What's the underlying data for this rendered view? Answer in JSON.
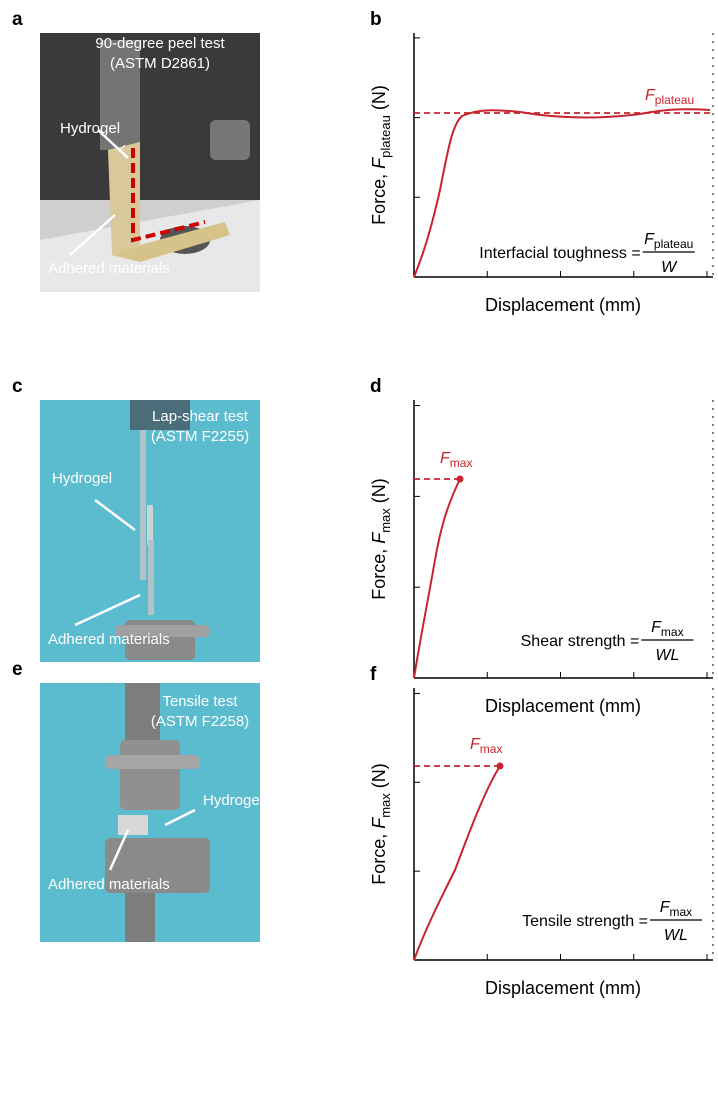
{
  "panels": [
    {
      "letter": "a",
      "lines": [
        "90-degree peel test",
        "(ASTM D2861)"
      ],
      "callouts": [
        "Hydrogel",
        "Adhered materials"
      ]
    },
    {
      "letter": "c",
      "lines": [
        "Lap-shear test",
        "(ASTM F2255)"
      ],
      "callouts": [
        "Hydrogel",
        "Adhered materials"
      ]
    },
    {
      "letter": "e",
      "lines": [
        "Tensile test",
        "(ASTM F2258)"
      ],
      "callouts": [
        "Hydrogel",
        "Adhered materials"
      ]
    }
  ],
  "plots": [
    {
      "letter": "b",
      "y_label": {
        "text": "Force,",
        "symbol": "F",
        "subscript": "plateau",
        "unit": "(N)"
      },
      "x_label": "Displacement (mm)",
      "marker": {
        "symbol": "F",
        "subscript": "plateau"
      },
      "formula": {
        "text": "Interfacial toughness =",
        "numerator": {
          "symbol": "F",
          "subscript": "plateau"
        },
        "denominator": "W"
      }
    },
    {
      "letter": "d",
      "y_label": {
        "text": "Force,",
        "symbol": "F",
        "subscript": "max",
        "unit": "(N)"
      },
      "x_label": "Displacement (mm)",
      "marker": {
        "symbol": "F",
        "subscript": "max"
      },
      "formula": {
        "text": "Shear strength =",
        "numerator": {
          "symbol": "F",
          "subscript": "max"
        },
        "denominator": "WL"
      }
    },
    {
      "letter": "f",
      "y_label": {
        "text": "Force,",
        "symbol": "F",
        "subscript": "max",
        "unit": "(N)"
      },
      "x_label": "Displacement (mm)",
      "marker": {
        "symbol": "F",
        "subscript": "max"
      },
      "formula": {
        "text": "Tensile strength =",
        "numerator": {
          "symbol": "F",
          "subscript": "max"
        },
        "denominator": "WL"
      }
    }
  ]
}
